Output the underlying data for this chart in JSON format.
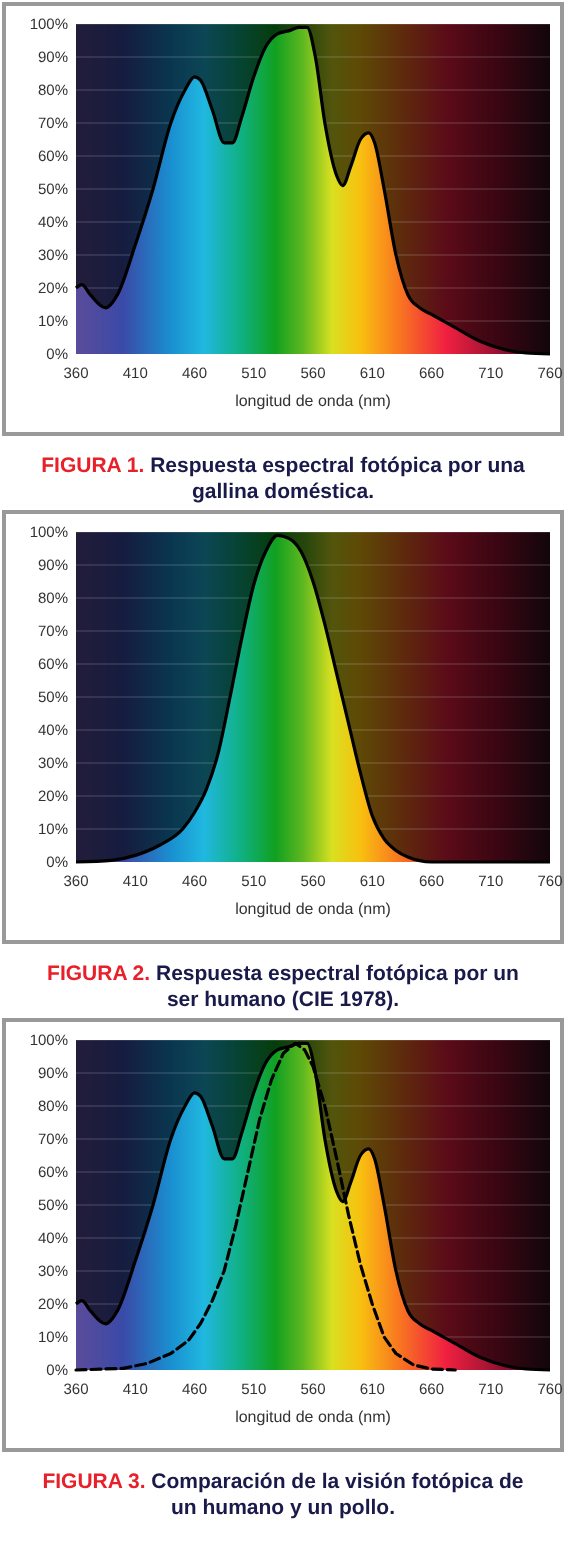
{
  "chart_data": [
    {
      "type": "area",
      "xlabel": "longitud de onda (nm)",
      "annotations": [
        "FIGURA 1. Respuesta espectral fotópica por una gallina doméstica."
      ],
      "xlim": [
        360,
        760
      ],
      "ylim": [
        0,
        100
      ],
      "xticks": [
        360,
        410,
        460,
        510,
        560,
        610,
        660,
        710,
        760
      ],
      "yticks": [
        {
          "value": 0,
          "label": "0%"
        },
        {
          "value": 10,
          "label": "10%"
        },
        {
          "value": 20,
          "label": "20%"
        },
        {
          "value": 30,
          "label": "30%"
        },
        {
          "value": 40,
          "label": "40%"
        },
        {
          "value": 50,
          "label": "50%"
        },
        {
          "value": 60,
          "label": "60%"
        },
        {
          "value": 70,
          "label": "70%"
        },
        {
          "value": 80,
          "label": "80%"
        },
        {
          "value": 90,
          "label": "90%"
        },
        {
          "value": 100,
          "label": "100%"
        }
      ],
      "grid": "y",
      "series": [
        {
          "color": "#000000",
          "line_style": "solid",
          "x": [
            360,
            365,
            372,
            385,
            395,
            410,
            425,
            440,
            452,
            460,
            465,
            475,
            485,
            492,
            500,
            510,
            520,
            530,
            540,
            548,
            555,
            562,
            570,
            580,
            585,
            592,
            600,
            607,
            612,
            620,
            630,
            640,
            650,
            660,
            680,
            700,
            720,
            740,
            760
          ],
          "values": [
            20,
            21,
            18,
            14,
            18,
            33,
            50,
            70,
            80,
            84,
            83,
            74,
            64,
            64,
            72,
            84,
            93,
            97,
            98,
            99,
            99,
            90,
            70,
            54,
            51,
            57,
            65,
            67,
            64,
            50,
            30,
            18,
            14,
            12,
            8,
            4,
            1.5,
            0.3,
            0
          ]
        }
      ]
    },
    {
      "type": "area",
      "xlabel": "longitud de onda (nm)",
      "annotations": [
        "FIGURA 2. Respuesta espectral fotópica por un ser humano (CIE 1978)."
      ],
      "xlim": [
        360,
        760
      ],
      "ylim": [
        0,
        100
      ],
      "xticks": [
        360,
        410,
        460,
        510,
        560,
        610,
        660,
        710,
        760
      ],
      "yticks": [
        {
          "value": 0,
          "label": "0%"
        },
        {
          "value": 10,
          "label": "10%"
        },
        {
          "value": 20,
          "label": "20%"
        },
        {
          "value": 30,
          "label": "30%"
        },
        {
          "value": 40,
          "label": "40%"
        },
        {
          "value": 50,
          "label": "50%"
        },
        {
          "value": 60,
          "label": "60%"
        },
        {
          "value": 70,
          "label": "70%"
        },
        {
          "value": 80,
          "label": "80%"
        },
        {
          "value": 90,
          "label": "90%"
        },
        {
          "value": 100,
          "label": "100%"
        }
      ],
      "grid": "y",
      "series": [
        {
          "color": "#000000",
          "line_style": "solid",
          "x": [
            360,
            390,
            410,
            430,
            450,
            460,
            470,
            480,
            490,
            500,
            510,
            520,
            530,
            540,
            550,
            560,
            570,
            580,
            590,
            600,
            610,
            620,
            630,
            640,
            660,
            760
          ],
          "values": [
            0,
            0.5,
            2,
            5,
            10,
            15,
            22,
            33,
            50,
            68,
            84,
            94,
            99,
            98,
            94,
            85,
            72,
            57,
            42,
            27,
            14,
            7,
            3.5,
            1.5,
            0,
            0
          ]
        }
      ]
    },
    {
      "type": "area",
      "xlabel": "longitud de onda (nm)",
      "annotations": [
        "FIGURA 3. Comparación de la visión fotópica de un humano y un pollo."
      ],
      "xlim": [
        360,
        760
      ],
      "ylim": [
        0,
        100
      ],
      "xticks": [
        360,
        410,
        460,
        510,
        560,
        610,
        660,
        710,
        760
      ],
      "yticks": [
        {
          "value": 0,
          "label": "0%"
        },
        {
          "value": 10,
          "label": "10%"
        },
        {
          "value": 20,
          "label": "20%"
        },
        {
          "value": 30,
          "label": "30%"
        },
        {
          "value": 40,
          "label": "40%"
        },
        {
          "value": 50,
          "label": "50%"
        },
        {
          "value": 60,
          "label": "60%"
        },
        {
          "value": 70,
          "label": "70%"
        },
        {
          "value": 80,
          "label": "80%"
        },
        {
          "value": 90,
          "label": "90%"
        },
        {
          "value": 100,
          "label": "100%"
        }
      ],
      "grid": "y",
      "series": [
        {
          "color": "#000000",
          "line_style": "solid",
          "x": [
            360,
            365,
            372,
            385,
            395,
            410,
            425,
            440,
            452,
            460,
            465,
            475,
            485,
            492,
            500,
            510,
            520,
            530,
            540,
            548,
            555,
            562,
            570,
            580,
            585,
            592,
            600,
            607,
            612,
            620,
            630,
            640,
            650,
            660,
            680,
            700,
            720,
            740,
            760
          ],
          "values": [
            20,
            21,
            18,
            14,
            18,
            33,
            50,
            70,
            80,
            84,
            83,
            74,
            64,
            64,
            72,
            84,
            93,
            97,
            98,
            99,
            99,
            90,
            70,
            54,
            51,
            57,
            65,
            67,
            64,
            50,
            30,
            18,
            14,
            12,
            8,
            4,
            1.5,
            0.3,
            0
          ]
        },
        {
          "type": "line",
          "color": "#000000",
          "line_style": "dashed",
          "x": [
            360,
            400,
            420,
            440,
            455,
            465,
            475,
            485,
            495,
            505,
            515,
            525,
            535,
            545,
            553,
            560,
            570,
            580,
            590,
            600,
            610,
            620,
            630,
            645,
            660,
            680
          ],
          "values": [
            0,
            0.5,
            2,
            5,
            9,
            14,
            21,
            30,
            44,
            60,
            76,
            88,
            96,
            99,
            97,
            92,
            80,
            64,
            47,
            32,
            20,
            10,
            5,
            1.5,
            0.3,
            0
          ]
        }
      ]
    }
  ]
}
